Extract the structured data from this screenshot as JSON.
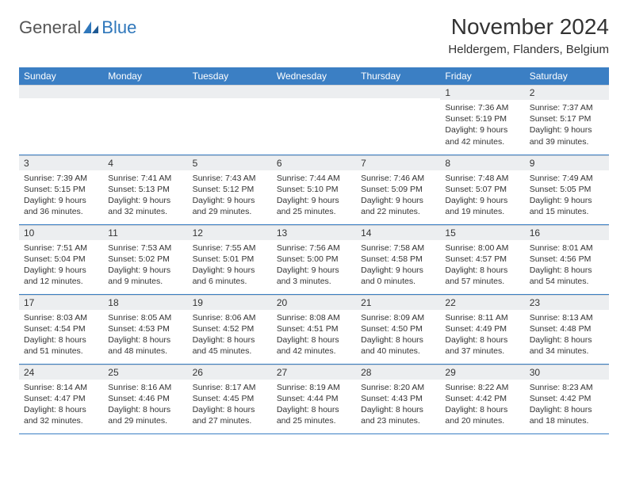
{
  "logo": {
    "part1": "General",
    "part2": "Blue"
  },
  "title": "November 2024",
  "location": "Heldergem, Flanders, Belgium",
  "colors": {
    "header_bg": "#3b7fc4",
    "header_fg": "#ffffff",
    "daynum_bg": "#eceef0",
    "rule": "#3b7fc4",
    "logo_accent": "#2f77bb"
  },
  "weekdays": [
    "Sunday",
    "Monday",
    "Tuesday",
    "Wednesday",
    "Thursday",
    "Friday",
    "Saturday"
  ],
  "weeks": [
    [
      {
        "n": "",
        "sr": "",
        "ss": "",
        "dl": ""
      },
      {
        "n": "",
        "sr": "",
        "ss": "",
        "dl": ""
      },
      {
        "n": "",
        "sr": "",
        "ss": "",
        "dl": ""
      },
      {
        "n": "",
        "sr": "",
        "ss": "",
        "dl": ""
      },
      {
        "n": "",
        "sr": "",
        "ss": "",
        "dl": ""
      },
      {
        "n": "1",
        "sr": "Sunrise: 7:36 AM",
        "ss": "Sunset: 5:19 PM",
        "dl": "Daylight: 9 hours and 42 minutes."
      },
      {
        "n": "2",
        "sr": "Sunrise: 7:37 AM",
        "ss": "Sunset: 5:17 PM",
        "dl": "Daylight: 9 hours and 39 minutes."
      }
    ],
    [
      {
        "n": "3",
        "sr": "Sunrise: 7:39 AM",
        "ss": "Sunset: 5:15 PM",
        "dl": "Daylight: 9 hours and 36 minutes."
      },
      {
        "n": "4",
        "sr": "Sunrise: 7:41 AM",
        "ss": "Sunset: 5:13 PM",
        "dl": "Daylight: 9 hours and 32 minutes."
      },
      {
        "n": "5",
        "sr": "Sunrise: 7:43 AM",
        "ss": "Sunset: 5:12 PM",
        "dl": "Daylight: 9 hours and 29 minutes."
      },
      {
        "n": "6",
        "sr": "Sunrise: 7:44 AM",
        "ss": "Sunset: 5:10 PM",
        "dl": "Daylight: 9 hours and 25 minutes."
      },
      {
        "n": "7",
        "sr": "Sunrise: 7:46 AM",
        "ss": "Sunset: 5:09 PM",
        "dl": "Daylight: 9 hours and 22 minutes."
      },
      {
        "n": "8",
        "sr": "Sunrise: 7:48 AM",
        "ss": "Sunset: 5:07 PM",
        "dl": "Daylight: 9 hours and 19 minutes."
      },
      {
        "n": "9",
        "sr": "Sunrise: 7:49 AM",
        "ss": "Sunset: 5:05 PM",
        "dl": "Daylight: 9 hours and 15 minutes."
      }
    ],
    [
      {
        "n": "10",
        "sr": "Sunrise: 7:51 AM",
        "ss": "Sunset: 5:04 PM",
        "dl": "Daylight: 9 hours and 12 minutes."
      },
      {
        "n": "11",
        "sr": "Sunrise: 7:53 AM",
        "ss": "Sunset: 5:02 PM",
        "dl": "Daylight: 9 hours and 9 minutes."
      },
      {
        "n": "12",
        "sr": "Sunrise: 7:55 AM",
        "ss": "Sunset: 5:01 PM",
        "dl": "Daylight: 9 hours and 6 minutes."
      },
      {
        "n": "13",
        "sr": "Sunrise: 7:56 AM",
        "ss": "Sunset: 5:00 PM",
        "dl": "Daylight: 9 hours and 3 minutes."
      },
      {
        "n": "14",
        "sr": "Sunrise: 7:58 AM",
        "ss": "Sunset: 4:58 PM",
        "dl": "Daylight: 9 hours and 0 minutes."
      },
      {
        "n": "15",
        "sr": "Sunrise: 8:00 AM",
        "ss": "Sunset: 4:57 PM",
        "dl": "Daylight: 8 hours and 57 minutes."
      },
      {
        "n": "16",
        "sr": "Sunrise: 8:01 AM",
        "ss": "Sunset: 4:56 PM",
        "dl": "Daylight: 8 hours and 54 minutes."
      }
    ],
    [
      {
        "n": "17",
        "sr": "Sunrise: 8:03 AM",
        "ss": "Sunset: 4:54 PM",
        "dl": "Daylight: 8 hours and 51 minutes."
      },
      {
        "n": "18",
        "sr": "Sunrise: 8:05 AM",
        "ss": "Sunset: 4:53 PM",
        "dl": "Daylight: 8 hours and 48 minutes."
      },
      {
        "n": "19",
        "sr": "Sunrise: 8:06 AM",
        "ss": "Sunset: 4:52 PM",
        "dl": "Daylight: 8 hours and 45 minutes."
      },
      {
        "n": "20",
        "sr": "Sunrise: 8:08 AM",
        "ss": "Sunset: 4:51 PM",
        "dl": "Daylight: 8 hours and 42 minutes."
      },
      {
        "n": "21",
        "sr": "Sunrise: 8:09 AM",
        "ss": "Sunset: 4:50 PM",
        "dl": "Daylight: 8 hours and 40 minutes."
      },
      {
        "n": "22",
        "sr": "Sunrise: 8:11 AM",
        "ss": "Sunset: 4:49 PM",
        "dl": "Daylight: 8 hours and 37 minutes."
      },
      {
        "n": "23",
        "sr": "Sunrise: 8:13 AM",
        "ss": "Sunset: 4:48 PM",
        "dl": "Daylight: 8 hours and 34 minutes."
      }
    ],
    [
      {
        "n": "24",
        "sr": "Sunrise: 8:14 AM",
        "ss": "Sunset: 4:47 PM",
        "dl": "Daylight: 8 hours and 32 minutes."
      },
      {
        "n": "25",
        "sr": "Sunrise: 8:16 AM",
        "ss": "Sunset: 4:46 PM",
        "dl": "Daylight: 8 hours and 29 minutes."
      },
      {
        "n": "26",
        "sr": "Sunrise: 8:17 AM",
        "ss": "Sunset: 4:45 PM",
        "dl": "Daylight: 8 hours and 27 minutes."
      },
      {
        "n": "27",
        "sr": "Sunrise: 8:19 AM",
        "ss": "Sunset: 4:44 PM",
        "dl": "Daylight: 8 hours and 25 minutes."
      },
      {
        "n": "28",
        "sr": "Sunrise: 8:20 AM",
        "ss": "Sunset: 4:43 PM",
        "dl": "Daylight: 8 hours and 23 minutes."
      },
      {
        "n": "29",
        "sr": "Sunrise: 8:22 AM",
        "ss": "Sunset: 4:42 PM",
        "dl": "Daylight: 8 hours and 20 minutes."
      },
      {
        "n": "30",
        "sr": "Sunrise: 8:23 AM",
        "ss": "Sunset: 4:42 PM",
        "dl": "Daylight: 8 hours and 18 minutes."
      }
    ]
  ]
}
